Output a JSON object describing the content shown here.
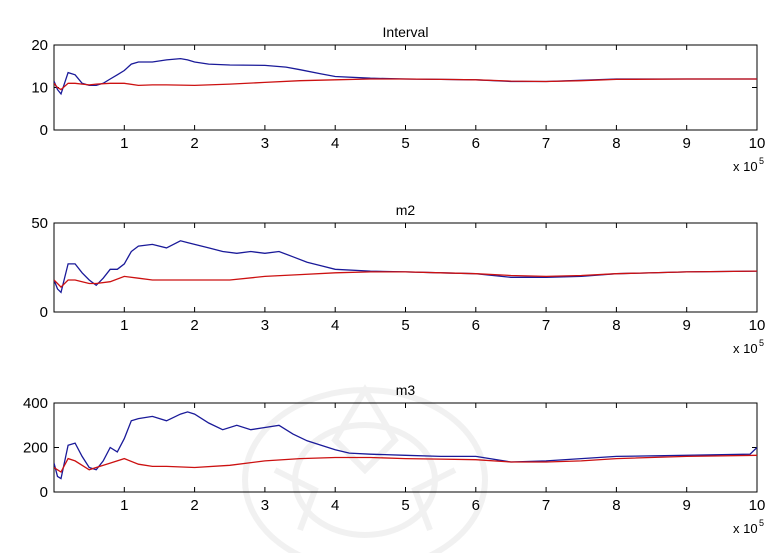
{
  "chart_data": [
    {
      "type": "line",
      "title": "Interval",
      "xlabel": "",
      "ylabel": "",
      "xlim": [
        0,
        1000000
      ],
      "ylim": [
        0,
        20
      ],
      "x_multiplier_label": {
        "base": "x 10",
        "exponent": "5"
      },
      "xticks": [
        100000,
        200000,
        300000,
        400000,
        500000,
        600000,
        700000,
        800000,
        900000,
        1000000
      ],
      "xticklabels": [
        "1",
        "2",
        "3",
        "4",
        "5",
        "6",
        "7",
        "8",
        "9",
        "10"
      ],
      "yticks": [
        0,
        10,
        20
      ],
      "yticklabels": [
        "0",
        "10",
        "20"
      ],
      "grid": false,
      "series": [
        {
          "color": "#1a1a99",
          "x": [
            0,
            5000,
            10000,
            20000,
            30000,
            40000,
            50000,
            60000,
            70000,
            80000,
            90000,
            100000,
            110000,
            120000,
            140000,
            160000,
            180000,
            190000,
            200000,
            220000,
            250000,
            300000,
            330000,
            350000,
            380000,
            400000,
            450000,
            500000,
            550000,
            600000,
            650000,
            700000,
            750000,
            800000,
            900000,
            1000000
          ],
          "y": [
            11.5,
            9.5,
            8.5,
            13.5,
            13.0,
            11.0,
            10.5,
            10.5,
            11.0,
            12.0,
            13.0,
            14.0,
            15.5,
            16.0,
            16.0,
            16.5,
            16.8,
            16.5,
            16.0,
            15.5,
            15.3,
            15.2,
            14.8,
            14.2,
            13.2,
            12.6,
            12.2,
            12.0,
            11.9,
            11.8,
            11.4,
            11.4,
            11.7,
            12.0,
            12.0,
            12.0
          ]
        },
        {
          "color": "#cc1111",
          "x": [
            0,
            5000,
            10000,
            20000,
            30000,
            40000,
            50000,
            60000,
            80000,
            100000,
            120000,
            140000,
            160000,
            200000,
            250000,
            300000,
            350000,
            400000,
            450000,
            500000,
            550000,
            600000,
            650000,
            700000,
            750000,
            800000,
            900000,
            1000000
          ],
          "y": [
            11.0,
            10.0,
            9.5,
            11.0,
            11.0,
            10.8,
            10.6,
            10.8,
            11.0,
            11.0,
            10.5,
            10.6,
            10.6,
            10.5,
            10.8,
            11.2,
            11.6,
            11.8,
            12.0,
            12.0,
            11.9,
            11.8,
            11.5,
            11.4,
            11.6,
            11.9,
            12.0,
            12.0
          ]
        }
      ]
    },
    {
      "type": "line",
      "title": "m2",
      "xlabel": "",
      "ylabel": "",
      "xlim": [
        0,
        1000000
      ],
      "ylim": [
        0,
        50
      ],
      "x_multiplier_label": {
        "base": "x 10",
        "exponent": "5"
      },
      "xticks": [
        100000,
        200000,
        300000,
        400000,
        500000,
        600000,
        700000,
        800000,
        900000,
        1000000
      ],
      "xticklabels": [
        "1",
        "2",
        "3",
        "4",
        "5",
        "6",
        "7",
        "8",
        "9",
        "10"
      ],
      "yticks": [
        0,
        50
      ],
      "yticklabels": [
        "0",
        "50"
      ],
      "grid": false,
      "series": [
        {
          "color": "#1a1a99",
          "x": [
            0,
            5000,
            10000,
            20000,
            30000,
            40000,
            50000,
            60000,
            70000,
            80000,
            90000,
            100000,
            110000,
            120000,
            140000,
            160000,
            180000,
            190000,
            200000,
            220000,
            240000,
            260000,
            280000,
            300000,
            320000,
            340000,
            360000,
            380000,
            400000,
            450000,
            500000,
            550000,
            600000,
            650000,
            700000,
            750000,
            800000,
            900000,
            1000000
          ],
          "y": [
            18,
            13,
            11,
            27,
            27,
            22,
            18,
            15,
            19,
            24,
            24,
            27,
            34,
            37,
            38,
            36,
            40,
            39,
            38,
            36,
            34,
            33,
            34,
            33,
            34,
            31,
            28,
            26,
            24,
            23,
            22.5,
            22,
            21.5,
            19.5,
            19.5,
            20,
            21.5,
            22.5,
            23
          ]
        },
        {
          "color": "#cc1111",
          "x": [
            0,
            5000,
            10000,
            20000,
            30000,
            40000,
            50000,
            60000,
            80000,
            100000,
            120000,
            140000,
            160000,
            200000,
            250000,
            300000,
            350000,
            400000,
            450000,
            500000,
            550000,
            600000,
            650000,
            700000,
            750000,
            800000,
            900000,
            1000000
          ],
          "y": [
            18,
            16,
            14,
            18,
            18,
            17,
            16,
            16,
            17,
            20,
            19,
            18,
            18,
            18,
            18,
            20,
            21,
            22,
            22.5,
            22.5,
            22,
            21.5,
            20.5,
            20,
            20.5,
            21.5,
            22.5,
            23
          ]
        }
      ]
    },
    {
      "type": "line",
      "title": "m3",
      "xlabel": "",
      "ylabel": "",
      "xlim": [
        0,
        1000000
      ],
      "ylim": [
        0,
        400
      ],
      "x_multiplier_label": {
        "base": "x 10",
        "exponent": "5"
      },
      "xticks": [
        100000,
        200000,
        300000,
        400000,
        500000,
        600000,
        700000,
        800000,
        900000,
        1000000
      ],
      "xticklabels": [
        "1",
        "2",
        "3",
        "4",
        "5",
        "6",
        "7",
        "8",
        "9",
        "10"
      ],
      "yticks": [
        0,
        200,
        400
      ],
      "yticklabels": [
        "0",
        "200",
        "400"
      ],
      "grid": false,
      "series": [
        {
          "color": "#1a1a99",
          "x": [
            0,
            5000,
            10000,
            20000,
            30000,
            40000,
            50000,
            60000,
            70000,
            80000,
            90000,
            100000,
            110000,
            120000,
            140000,
            160000,
            180000,
            190000,
            200000,
            220000,
            240000,
            260000,
            280000,
            300000,
            320000,
            340000,
            360000,
            380000,
            400000,
            420000,
            450000,
            500000,
            550000,
            600000,
            650000,
            700000,
            750000,
            800000,
            900000,
            990000,
            1000000
          ],
          "y": [
            130,
            70,
            60,
            210,
            220,
            160,
            110,
            100,
            140,
            200,
            180,
            240,
            320,
            330,
            340,
            320,
            350,
            360,
            350,
            310,
            280,
            300,
            280,
            290,
            300,
            260,
            230,
            210,
            190,
            175,
            170,
            165,
            160,
            160,
            135,
            140,
            150,
            160,
            165,
            170,
            200
          ]
        },
        {
          "color": "#cc1111",
          "x": [
            0,
            5000,
            10000,
            20000,
            30000,
            40000,
            50000,
            60000,
            80000,
            100000,
            120000,
            140000,
            160000,
            200000,
            250000,
            300000,
            350000,
            400000,
            450000,
            500000,
            550000,
            600000,
            650000,
            700000,
            750000,
            800000,
            900000,
            1000000
          ],
          "y": [
            110,
            100,
            90,
            150,
            140,
            120,
            100,
            110,
            130,
            150,
            125,
            115,
            115,
            110,
            120,
            140,
            150,
            155,
            155,
            150,
            148,
            145,
            135,
            135,
            140,
            150,
            160,
            165
          ]
        }
      ]
    }
  ]
}
